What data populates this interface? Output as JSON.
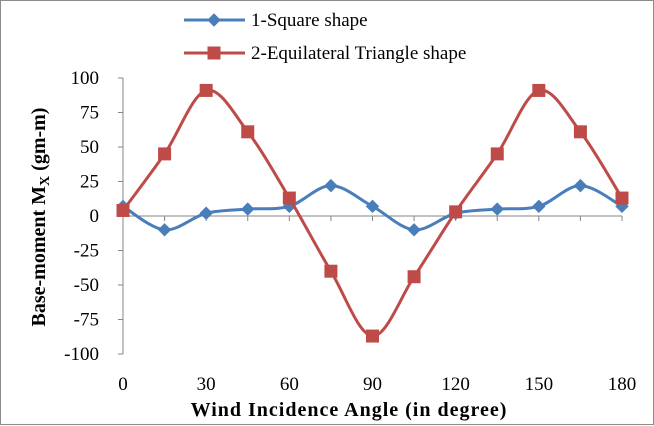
{
  "chart_data": {
    "type": "line",
    "title": "",
    "xlabel": "Wind Incidence Angle (in degree)",
    "ylabel_main": "Base-moment M",
    "ylabel_sub": "X",
    "ylabel_unit": " (gm-m)",
    "x": [
      0,
      15,
      30,
      45,
      60,
      75,
      90,
      105,
      120,
      135,
      150,
      165,
      180
    ],
    "xlim": [
      0,
      180
    ],
    "ylim": [
      -100,
      100
    ],
    "xticks": [
      0,
      30,
      60,
      90,
      120,
      150,
      180
    ],
    "yticks": [
      100,
      75,
      50,
      25,
      0,
      -25,
      -50,
      -75,
      -100
    ],
    "grid": false,
    "legend_position": "top",
    "series": [
      {
        "name": "1-Square shape",
        "color": "#4a7ebb",
        "marker": "diamond",
        "values": [
          7,
          -10,
          2,
          5,
          7,
          22,
          7,
          -10,
          2,
          5,
          7,
          22,
          7
        ]
      },
      {
        "name": "2-Equilateral Triangle shape",
        "color": "#be4b48",
        "marker": "square",
        "values": [
          4,
          45,
          91,
          61,
          13,
          -40,
          -87,
          -44,
          3,
          45,
          91,
          61,
          13
        ]
      }
    ]
  }
}
